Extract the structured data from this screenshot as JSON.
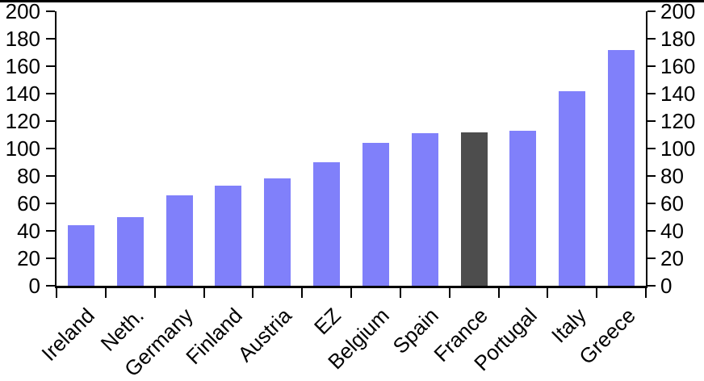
{
  "chart_data": {
    "type": "bar",
    "title": "",
    "categories": [
      "Ireland",
      "Neth.",
      "Germany",
      "Finland",
      "Austria",
      "EZ",
      "Belgium",
      "Spain",
      "France",
      "Portugal",
      "Italy",
      "Greece"
    ],
    "values": [
      44,
      50,
      66,
      73,
      78,
      90,
      104,
      111,
      112,
      113,
      142,
      172
    ],
    "bar_color": "#8080FA",
    "highlight": {
      "category": "France",
      "color": "#4D4D4D"
    },
    "axis_color": "#000000",
    "background_color": "#FFFFFF",
    "y_axis": {
      "min": 0,
      "max": 200,
      "step": 20,
      "tick_labels": [
        "0",
        "20",
        "40",
        "60",
        "80",
        "100",
        "120",
        "140",
        "160",
        "180",
        "200"
      ],
      "sides": [
        "left",
        "right"
      ]
    },
    "x_axis": {
      "label_rotation_deg": 45
    },
    "grid": false,
    "legend": false,
    "ylim": [
      0,
      200
    ]
  }
}
